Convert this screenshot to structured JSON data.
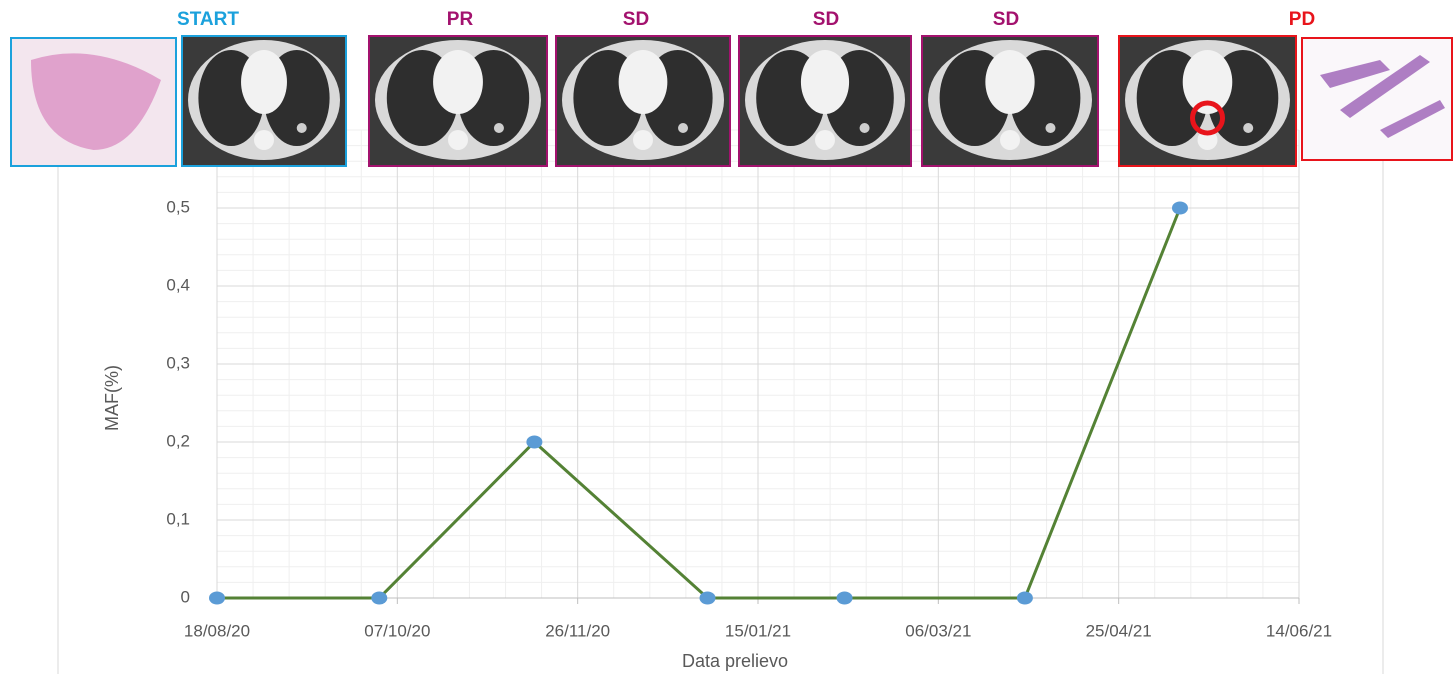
{
  "chart_data": {
    "type": "line",
    "x_label": "Data prelievo",
    "y_label": "MAF(%)",
    "x": [
      "2020-08-18",
      "2020-10-02",
      "2020-11-14",
      "2021-01-01",
      "2021-02-08",
      "2021-03-30",
      "2021-05-12"
    ],
    "series": [
      {
        "color": "#548235",
        "marker_color": "#5b9bd5",
        "values": [
          0,
          0,
          0.2,
          0,
          0,
          0,
          0.5
        ]
      }
    ],
    "xlim": [
      "2020-08-18",
      "2021-06-14"
    ],
    "xticks": [
      {
        "value": "2020-08-18",
        "label": "18/08/20"
      },
      {
        "value": "2020-10-07",
        "label": "07/10/20"
      },
      {
        "value": "2020-11-26",
        "label": "26/11/20"
      },
      {
        "value": "2021-01-15",
        "label": "15/01/21"
      },
      {
        "value": "2021-03-06",
        "label": "06/03/21"
      },
      {
        "value": "2021-04-25",
        "label": "25/04/21"
      },
      {
        "value": "2021-06-14",
        "label": "14/06/21"
      }
    ],
    "ylim": [
      0,
      0.6
    ],
    "yticks": [
      {
        "value": 0,
        "label": "0"
      },
      {
        "value": 0.1,
        "label": "0,1"
      },
      {
        "value": 0.2,
        "label": "0,2"
      },
      {
        "value": 0.3,
        "label": "0,3"
      },
      {
        "value": 0.4,
        "label": "0,4"
      },
      {
        "value": 0.5,
        "label": "0,5"
      }
    ],
    "grid": true,
    "minor_grid": true,
    "timeline": [
      {
        "label": "START",
        "color": "#1ba1dc"
      },
      {
        "label": "PR",
        "color": "#a3126e"
      },
      {
        "label": "SD",
        "color": "#a3126e"
      },
      {
        "label": "SD",
        "color": "#a3126e"
      },
      {
        "label": "SD",
        "color": "#a3126e"
      },
      {
        "label": "PD",
        "color": "#e8141b"
      }
    ]
  }
}
